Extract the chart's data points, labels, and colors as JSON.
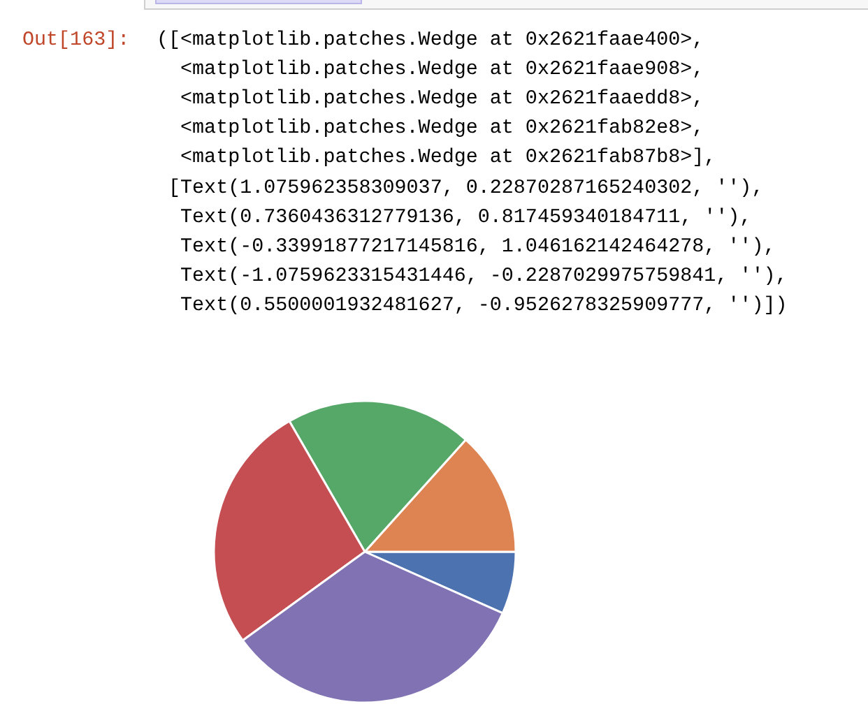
{
  "chart_data": {
    "type": "pie",
    "categories": [
      null,
      null,
      null,
      null,
      null
    ],
    "values": [
      6.67,
      13.33,
      20,
      26.67,
      33.33
    ],
    "colors": [
      "#4c72b0",
      "#dd8452",
      "#55a868",
      "#c44e52",
      "#8172b3"
    ],
    "annotations": [
      "Out[163]:",
      "([<matplotlib.patches.Wedge at 0x2621faae400>,",
      "  <matplotlib.patches.Wedge at 0x2621faae908>,",
      "  <matplotlib.patches.Wedge at 0x2621faaedd8>,",
      "  <matplotlib.patches.Wedge at 0x2621fab82e8>,",
      "  <matplotlib.patches.Wedge at 0x2621fab87b8>],",
      " [Text(1.075962358309037, 0.22870287165240302, ''),",
      "  Text(0.7360436312779136, 0.817459340184711, ''),",
      "  Text(-0.33991877217145816, 1.046162142464278, ''),",
      "  Text(-1.0759623315431446, -0.2287029975759841, ''),",
      "  Text(0.5500001932481627, -0.9526278325909777, '')])"
    ]
  }
}
